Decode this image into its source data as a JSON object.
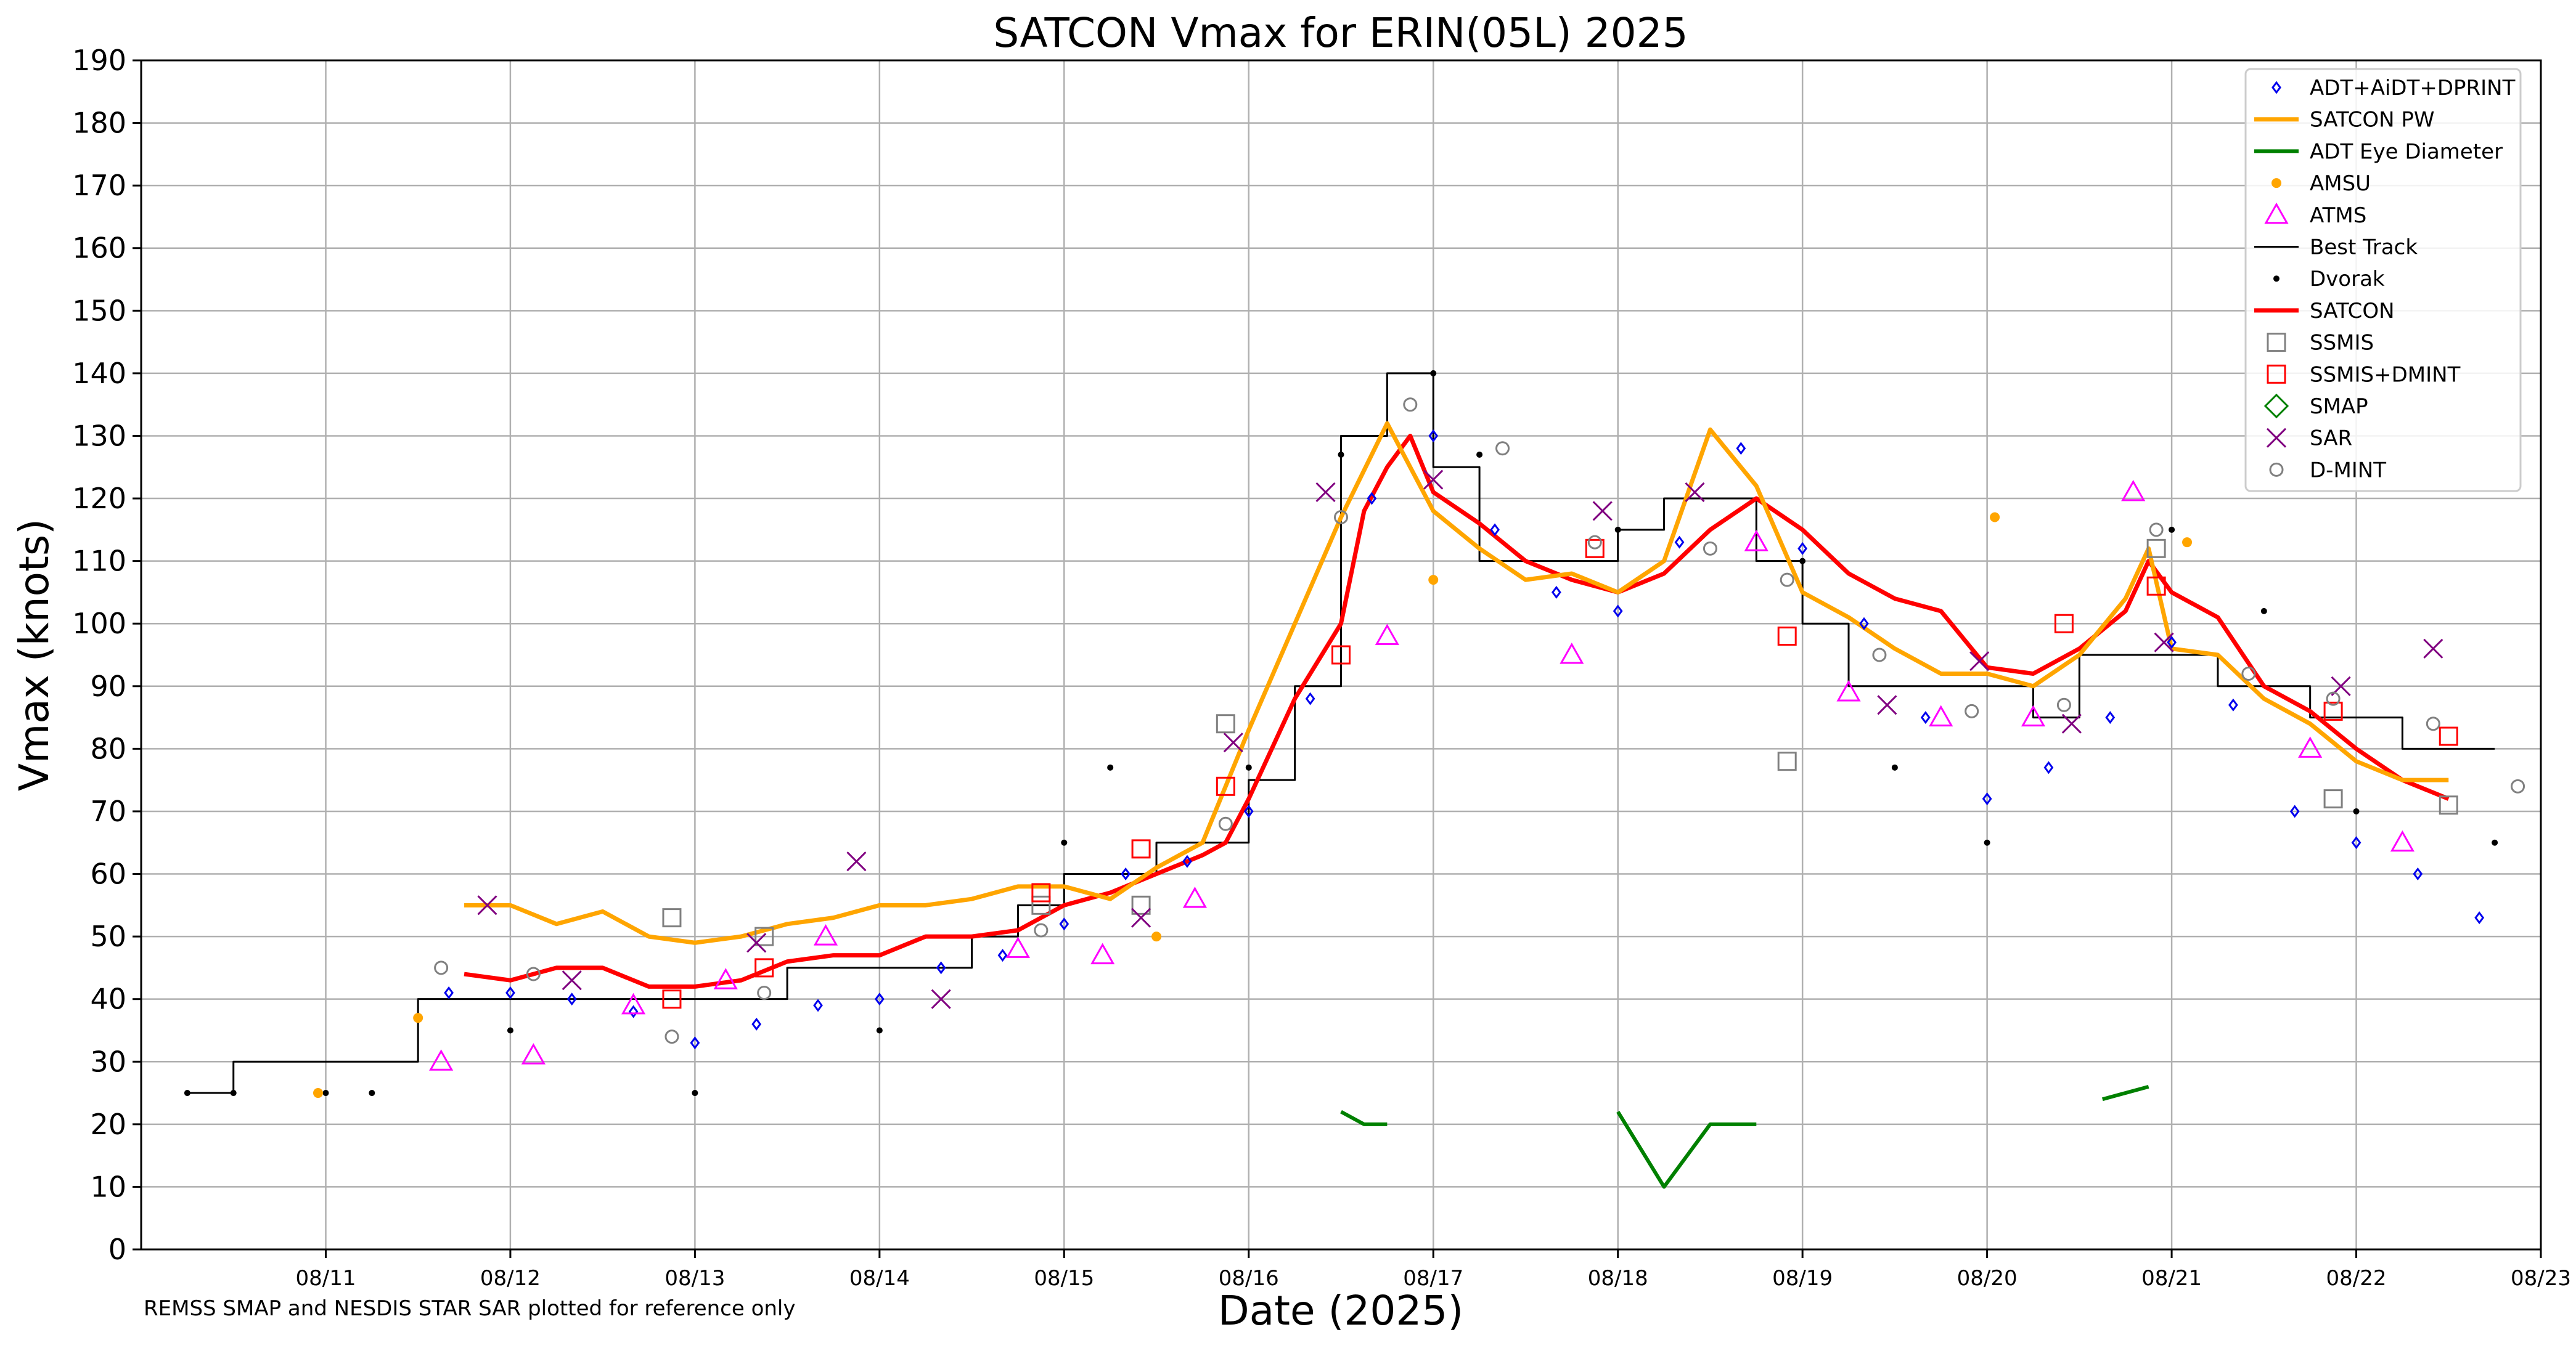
{
  "colors": {
    "adt": "#0000ee",
    "satcon_pw": "#ffa500",
    "adt_eye": "#008000",
    "amsu": "#ffa500",
    "atms": "#ff00ff",
    "best_track": "#000000",
    "dvorak": "#000000",
    "satcon": "#ff0000",
    "ssmis": "#808080",
    "ssmis_dmint": "#ff0000",
    "smap": "#008000",
    "sar": "#800080",
    "dmint": "#808080",
    "grid": "#b0b0b0"
  },
  "chart_data": {
    "type": "line",
    "title": "SATCON Vmax for ERIN(05L) 2025",
    "xlabel": "Date (2025)",
    "ylabel": "Vmax (knots)",
    "note": "REMSS SMAP and NESDIS STAR SAR plotted for reference only",
    "xlim": [
      "2025-08-10T00",
      "2025-08-23T00"
    ],
    "ylim": [
      0,
      190
    ],
    "grid": true,
    "legend_position": "top-right",
    "x_ticks": [
      "08/11",
      "08/12",
      "08/13",
      "08/14",
      "08/15",
      "08/16",
      "08/17",
      "08/18",
      "08/19",
      "08/20",
      "08/21",
      "08/22",
      "08/23"
    ],
    "y_ticks": [
      0,
      10,
      20,
      30,
      40,
      50,
      60,
      70,
      80,
      90,
      100,
      110,
      120,
      130,
      140,
      150,
      160,
      170,
      180,
      190
    ],
    "legend": [
      "ADT+AiDT+DPRINT",
      "SATCON PW",
      "ADT Eye Diameter",
      "AMSU",
      "ATMS",
      "Best Track",
      "Dvorak",
      "SATCON",
      "SSMIS",
      "SSMIS+DMINT",
      "SMAP",
      "SAR",
      "D-MINT"
    ],
    "series": [
      {
        "name": "Best Track",
        "style": "line",
        "x": [
          "2025-08-10T06",
          "2025-08-10T12",
          "2025-08-10T18",
          "2025-08-11T00",
          "2025-08-11T06",
          "2025-08-11T12",
          "2025-08-11T18",
          "2025-08-12T00",
          "2025-08-12T06",
          "2025-08-12T12",
          "2025-08-12T18",
          "2025-08-13T00",
          "2025-08-13T06",
          "2025-08-13T12",
          "2025-08-13T18",
          "2025-08-14T00",
          "2025-08-14T06",
          "2025-08-14T12",
          "2025-08-14T18",
          "2025-08-15T00",
          "2025-08-15T06",
          "2025-08-15T12",
          "2025-08-15T18",
          "2025-08-16T00",
          "2025-08-16T06",
          "2025-08-16T12",
          "2025-08-16T18",
          "2025-08-17T00",
          "2025-08-17T06",
          "2025-08-17T12",
          "2025-08-17T18",
          "2025-08-18T00",
          "2025-08-18T06",
          "2025-08-18T12",
          "2025-08-18T18",
          "2025-08-19T00",
          "2025-08-19T06",
          "2025-08-19T12",
          "2025-08-19T18",
          "2025-08-20T00",
          "2025-08-20T06",
          "2025-08-20T12",
          "2025-08-20T18",
          "2025-08-21T00",
          "2025-08-21T06",
          "2025-08-21T12",
          "2025-08-21T18",
          "2025-08-22T00",
          "2025-08-22T06",
          "2025-08-22T12",
          "2025-08-22T18"
        ],
        "y": [
          25,
          30,
          30,
          30,
          30,
          40,
          40,
          40,
          40,
          40,
          40,
          40,
          40,
          45,
          45,
          45,
          45,
          50,
          55,
          60,
          60,
          65,
          65,
          75,
          90,
          130,
          140,
          125,
          110,
          110,
          110,
          115,
          120,
          120,
          110,
          100,
          90,
          90,
          90,
          90,
          85,
          95,
          95,
          95,
          90,
          90,
          85,
          85,
          80,
          80,
          80
        ]
      },
      {
        "name": "SATCON",
        "style": "line",
        "x": [
          "2025-08-11T18",
          "2025-08-12T00",
          "2025-08-12T06",
          "2025-08-12T12",
          "2025-08-12T18",
          "2025-08-13T00",
          "2025-08-13T06",
          "2025-08-13T12",
          "2025-08-13T18",
          "2025-08-14T00",
          "2025-08-14T06",
          "2025-08-14T12",
          "2025-08-14T18",
          "2025-08-15T00",
          "2025-08-15T06",
          "2025-08-15T12",
          "2025-08-15T18",
          "2025-08-15T21",
          "2025-08-16T00",
          "2025-08-16T06",
          "2025-08-16T12",
          "2025-08-16T15",
          "2025-08-16T18",
          "2025-08-16T21",
          "2025-08-17T00",
          "2025-08-17T06",
          "2025-08-17T12",
          "2025-08-17T18",
          "2025-08-18T00",
          "2025-08-18T06",
          "2025-08-18T12",
          "2025-08-18T18",
          "2025-08-19T00",
          "2025-08-19T06",
          "2025-08-19T12",
          "2025-08-19T18",
          "2025-08-20T00",
          "2025-08-20T06",
          "2025-08-20T12",
          "2025-08-20T18",
          "2025-08-20T21",
          "2025-08-21T00",
          "2025-08-21T06",
          "2025-08-21T12",
          "2025-08-21T18",
          "2025-08-22T00",
          "2025-08-22T06",
          "2025-08-22T12"
        ],
        "y": [
          44,
          43,
          45,
          45,
          42,
          42,
          43,
          46,
          47,
          47,
          50,
          50,
          51,
          55,
          57,
          60,
          63,
          65,
          72,
          88,
          100,
          118,
          125,
          130,
          121,
          116,
          110,
          107,
          105,
          108,
          115,
          120,
          115,
          108,
          104,
          102,
          93,
          92,
          96,
          102,
          110,
          105,
          101,
          90,
          86,
          80,
          75,
          72
        ]
      },
      {
        "name": "SATCON PW",
        "style": "line",
        "x": [
          "2025-08-11T18",
          "2025-08-12T00",
          "2025-08-12T06",
          "2025-08-12T12",
          "2025-08-12T18",
          "2025-08-13T00",
          "2025-08-13T06",
          "2025-08-13T12",
          "2025-08-13T18",
          "2025-08-14T00",
          "2025-08-14T06",
          "2025-08-14T12",
          "2025-08-14T18",
          "2025-08-15T00",
          "2025-08-15T06",
          "2025-08-15T12",
          "2025-08-15T18",
          "2025-08-16T00",
          "2025-08-16T06",
          "2025-08-16T12",
          "2025-08-16T18",
          "2025-08-17T00",
          "2025-08-17T06",
          "2025-08-17T12",
          "2025-08-17T18",
          "2025-08-18T00",
          "2025-08-18T06",
          "2025-08-18T12",
          "2025-08-18T18",
          "2025-08-19T00",
          "2025-08-19T06",
          "2025-08-19T12",
          "2025-08-19T18",
          "2025-08-20T00",
          "2025-08-20T06",
          "2025-08-20T12",
          "2025-08-20T18",
          "2025-08-20T21",
          "2025-08-21T00",
          "2025-08-21T06",
          "2025-08-21T12",
          "2025-08-21T18",
          "2025-08-22T00",
          "2025-08-22T06",
          "2025-08-22T12"
        ],
        "y": [
          55,
          55,
          52,
          54,
          50,
          49,
          50,
          52,
          53,
          55,
          55,
          56,
          58,
          58,
          56,
          61,
          65,
          83,
          100,
          117,
          132,
          118,
          112,
          107,
          108,
          105,
          110,
          131,
          122,
          105,
          101,
          96,
          92,
          92,
          90,
          95,
          104,
          112,
          96,
          95,
          88,
          84,
          78,
          75,
          75
        ]
      },
      {
        "name": "ADT+AiDT+DPRINT",
        "style": "marker",
        "x": [
          "2025-08-11T16",
          "2025-08-12T00",
          "2025-08-12T08",
          "2025-08-12T16",
          "2025-08-13T00",
          "2025-08-13T08",
          "2025-08-13T16",
          "2025-08-14T00",
          "2025-08-14T08",
          "2025-08-14T16",
          "2025-08-15T00",
          "2025-08-15T08",
          "2025-08-15T16",
          "2025-08-16T00",
          "2025-08-16T08",
          "2025-08-16T16",
          "2025-08-17T00",
          "2025-08-17T08",
          "2025-08-17T16",
          "2025-08-18T00",
          "2025-08-18T08",
          "2025-08-18T16",
          "2025-08-19T00",
          "2025-08-19T08",
          "2025-08-19T16",
          "2025-08-20T00",
          "2025-08-20T08",
          "2025-08-20T16",
          "2025-08-21T00",
          "2025-08-21T08",
          "2025-08-21T16",
          "2025-08-22T00",
          "2025-08-22T08",
          "2025-08-22T16"
        ],
        "y": [
          41,
          41,
          40,
          38,
          33,
          36,
          39,
          40,
          45,
          47,
          52,
          60,
          62,
          70,
          88,
          120,
          130,
          115,
          105,
          102,
          113,
          128,
          112,
          100,
          85,
          72,
          77,
          85,
          97,
          87,
          70,
          65,
          60,
          53
        ]
      },
      {
        "name": "ADT Eye Diameter",
        "style": "line",
        "segments": [
          {
            "x": [
              "2025-08-16T12",
              "2025-08-16T15",
              "2025-08-16T18"
            ],
            "y": [
              22,
              20,
              20
            ]
          },
          {
            "x": [
              "2025-08-18T00",
              "2025-08-18T06",
              "2025-08-18T12",
              "2025-08-18T18"
            ],
            "y": [
              22,
              10,
              20,
              20
            ]
          },
          {
            "x": [
              "2025-08-20T15",
              "2025-08-20T21"
            ],
            "y": [
              24,
              26
            ]
          }
        ]
      },
      {
        "name": "Dvorak",
        "style": "marker",
        "x": [
          "2025-08-10T06",
          "2025-08-10T12",
          "2025-08-11T00",
          "2025-08-11T06",
          "2025-08-12T00",
          "2025-08-13T00",
          "2025-08-14T00",
          "2025-08-15T00",
          "2025-08-15T06",
          "2025-08-16T00",
          "2025-08-16T12",
          "2025-08-17T00",
          "2025-08-17T06",
          "2025-08-18T00",
          "2025-08-19T00",
          "2025-08-19T12",
          "2025-08-20T00",
          "2025-08-21T00",
          "2025-08-21T12",
          "2025-08-22T00",
          "2025-08-22T18"
        ],
        "y": [
          25,
          25,
          25,
          25,
          35,
          25,
          35,
          65,
          77,
          77,
          127,
          140,
          127,
          115,
          110,
          77,
          65,
          115,
          102,
          70,
          65
        ]
      },
      {
        "name": "SSMIS",
        "style": "marker",
        "x": [
          "2025-08-12T21",
          "2025-08-13T09",
          "2025-08-14T21",
          "2025-08-15T10",
          "2025-08-15T21",
          "2025-08-18T22",
          "2025-08-20T22",
          "2025-08-21T21",
          "2025-08-22T12"
        ],
        "y": [
          53,
          50,
          55,
          55,
          84,
          78,
          112,
          72,
          71
        ]
      },
      {
        "name": "SSMIS+DMINT",
        "style": "marker",
        "x": [
          "2025-08-12T21",
          "2025-08-13T09",
          "2025-08-14T21",
          "2025-08-15T10",
          "2025-08-15T21",
          "2025-08-16T12",
          "2025-08-17T21",
          "2025-08-18T22",
          "2025-08-20T10",
          "2025-08-20T22",
          "2025-08-21T21",
          "2025-08-22T12"
        ],
        "y": [
          40,
          45,
          57,
          64,
          74,
          95,
          112,
          98,
          100,
          106,
          86,
          82
        ]
      },
      {
        "name": "ATMS",
        "style": "marker",
        "x": [
          "2025-08-11T15",
          "2025-08-12T03",
          "2025-08-12T16",
          "2025-08-13T04",
          "2025-08-13T17",
          "2025-08-14T18",
          "2025-08-15T05",
          "2025-08-15T17",
          "2025-08-16T18",
          "2025-08-17T18",
          "2025-08-18T18",
          "2025-08-19T06",
          "2025-08-19T18",
          "2025-08-20T06",
          "2025-08-20T19",
          "2025-08-21T18",
          "2025-08-22T06"
        ],
        "y": [
          30,
          31,
          39,
          43,
          50,
          48,
          47,
          56,
          98,
          95,
          113,
          89,
          85,
          85,
          121,
          80,
          65
        ]
      },
      {
        "name": "AMSU",
        "style": "marker",
        "x": [
          "2025-08-10T23",
          "2025-08-11T12",
          "2025-08-15T12",
          "2025-08-17T00",
          "2025-08-20T01",
          "2025-08-21T02"
        ],
        "y": [
          25,
          37,
          50,
          107,
          117,
          113
        ]
      },
      {
        "name": "SAR",
        "style": "marker",
        "x": [
          "2025-08-11T21",
          "2025-08-12T08",
          "2025-08-13T08",
          "2025-08-13T21",
          "2025-08-14T08",
          "2025-08-15T10",
          "2025-08-15T22",
          "2025-08-16T10",
          "2025-08-17T00",
          "2025-08-17T22",
          "2025-08-18T10",
          "2025-08-19T11",
          "2025-08-19T23",
          "2025-08-20T11",
          "2025-08-20T23",
          "2025-08-21T22",
          "2025-08-22T10"
        ],
        "y": [
          55,
          43,
          49,
          62,
          40,
          53,
          81,
          121,
          123,
          118,
          121,
          87,
          94,
          84,
          97,
          90,
          96
        ]
      },
      {
        "name": "D-MINT",
        "style": "marker",
        "x": [
          "2025-08-11T15",
          "2025-08-12T03",
          "2025-08-12T21",
          "2025-08-13T09",
          "2025-08-14T21",
          "2025-08-15T21",
          "2025-08-16T12",
          "2025-08-16T21",
          "2025-08-17T09",
          "2025-08-17T21",
          "2025-08-18T12",
          "2025-08-18T22",
          "2025-08-19T10",
          "2025-08-19T22",
          "2025-08-20T10",
          "2025-08-20T22",
          "2025-08-21T10",
          "2025-08-21T21",
          "2025-08-22T10",
          "2025-08-22T21"
        ],
        "y": [
          45,
          44,
          34,
          41,
          51,
          68,
          117,
          135,
          128,
          113,
          112,
          107,
          95,
          86,
          87,
          115,
          92,
          88,
          84,
          74
        ]
      }
    ]
  }
}
